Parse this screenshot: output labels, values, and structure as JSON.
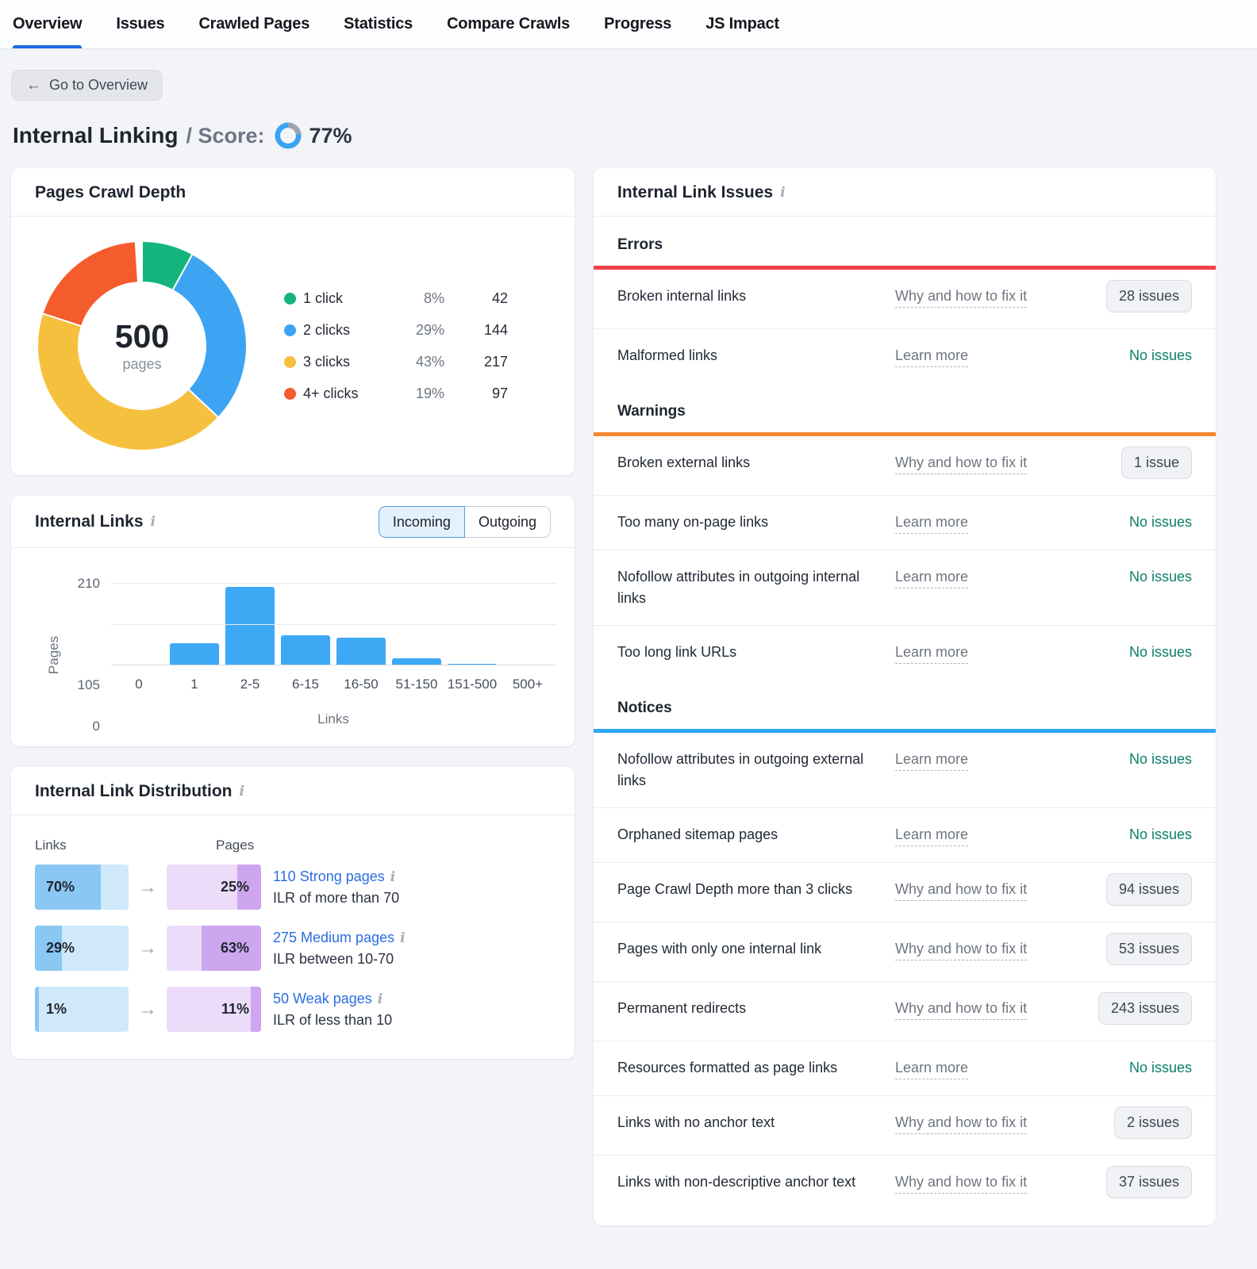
{
  "icons": {
    "info": "i",
    "back_arrow": "←",
    "arrow_right": "→"
  },
  "nav": {
    "tabs": [
      {
        "label": "Overview",
        "active": true
      },
      {
        "label": "Issues",
        "active": false
      },
      {
        "label": "Crawled Pages",
        "active": false
      },
      {
        "label": "Statistics",
        "active": false
      },
      {
        "label": "Compare Crawls",
        "active": false
      },
      {
        "label": "Progress",
        "active": false
      },
      {
        "label": "JS Impact",
        "active": false
      }
    ]
  },
  "back_button": {
    "label": "Go to Overview"
  },
  "page": {
    "title": "Internal Linking",
    "score_prefix": "/ Score:",
    "score_value": "77%",
    "score_percent": 77,
    "score_ring_color": "#3ba3f2",
    "score_ring_track": "#9aa3ae"
  },
  "crawl_depth_card": {
    "title": "Pages Crawl Depth",
    "center_value": "500",
    "center_label": "pages",
    "legend": [
      {
        "label": "1 click",
        "percent": "8%",
        "count": "42",
        "color": "#15b47c"
      },
      {
        "label": "2 clicks",
        "percent": "29%",
        "count": "144",
        "color": "#3da4f4"
      },
      {
        "label": "3 clicks",
        "percent": "43%",
        "count": "217",
        "color": "#f5c03d"
      },
      {
        "label": "4+ clicks",
        "percent": "19%",
        "count": "97",
        "color": "#f45b2d"
      }
    ]
  },
  "internal_links_card": {
    "title": "Internal Links",
    "toggle": {
      "incoming": "Incoming",
      "outgoing": "Outgoing",
      "selected": "Incoming"
    },
    "ylabel": "Pages",
    "xlabel": "Links",
    "yticks": {
      "top": "210",
      "middle": "105",
      "bottom": "0"
    }
  },
  "distribution_card": {
    "title": "Internal Link Distribution",
    "links_header": "Links",
    "pages_header": "Pages",
    "rows": [
      {
        "links_percent": "70%",
        "links_fill": 70,
        "pages_percent": "25%",
        "pages_fill": 25,
        "link_label": "110 Strong pages",
        "subtitle": "ILR of more than 70"
      },
      {
        "links_percent": "29%",
        "links_fill": 29,
        "pages_percent": "63%",
        "pages_fill": 63,
        "link_label": "275 Medium pages",
        "subtitle": "ILR between 10-70"
      },
      {
        "links_percent": "1%",
        "links_fill": 1,
        "pages_percent": "11%",
        "pages_fill": 11,
        "link_label": "50 Weak pages",
        "subtitle": "ILR of less than 10"
      }
    ]
  },
  "issues_card": {
    "title": "Internal Link Issues",
    "sections": [
      {
        "name": "Errors",
        "accent_color": "#f2414b",
        "rows": [
          {
            "name": "Broken internal links",
            "link": "Why and how to fix it",
            "value": "28 issues",
            "value_type": "button"
          },
          {
            "name": "Malformed links",
            "link": "Learn more",
            "value": "No issues",
            "value_type": "text"
          }
        ]
      },
      {
        "name": "Warnings",
        "accent_color": "#f5882f",
        "rows": [
          {
            "name": "Broken external links",
            "link": "Why and how to fix it",
            "value": "1 issue",
            "value_type": "button"
          },
          {
            "name": "Too many on-page links",
            "link": "Learn more",
            "value": "No issues",
            "value_type": "text"
          },
          {
            "name": "Nofollow attributes in outgoing internal links",
            "link": "Learn more",
            "value": "No issues",
            "value_type": "text"
          },
          {
            "name": "Too long link URLs",
            "link": "Learn more",
            "value": "No issues",
            "value_type": "text"
          }
        ]
      },
      {
        "name": "Notices",
        "accent_color": "#2fa7f3",
        "rows": [
          {
            "name": "Nofollow attributes in outgoing external links",
            "link": "Learn more",
            "value": "No issues",
            "value_type": "text"
          },
          {
            "name": "Orphaned sitemap pages",
            "link": "Learn more",
            "value": "No issues",
            "value_type": "text"
          },
          {
            "name": "Page Crawl Depth more than 3 clicks",
            "link": "Why and how to fix it",
            "value": "94 issues",
            "value_type": "button"
          },
          {
            "name": "Pages with only one internal link",
            "link": "Why and how to fix it",
            "value": "53 issues",
            "value_type": "button"
          },
          {
            "name": "Permanent redirects",
            "link": "Why and how to fix it",
            "value": "243 issues",
            "value_type": "button"
          },
          {
            "name": "Resources formatted as page links",
            "link": "Learn more",
            "value": "No issues",
            "value_type": "text"
          },
          {
            "name": "Links with no anchor text",
            "link": "Why and how to fix it",
            "value": "2 issues",
            "value_type": "button"
          },
          {
            "name": "Links with non-descriptive anchor text",
            "link": "Why and how to fix it",
            "value": "37 issues",
            "value_type": "button"
          }
        ]
      }
    ]
  },
  "chart_data": [
    {
      "type": "pie",
      "title": "Pages Crawl Depth",
      "labels": [
        "1 click",
        "2 clicks",
        "3 clicks",
        "4+ clicks"
      ],
      "values": [
        42,
        144,
        217,
        97
      ],
      "percents": [
        8,
        29,
        43,
        19
      ],
      "colors": [
        "#15b47c",
        "#3da4f4",
        "#f5c03d",
        "#f45b2d"
      ],
      "center_total": 500,
      "center_unit": "pages",
      "donut": true,
      "legend_position": "right"
    },
    {
      "type": "bar",
      "title": "Internal Links — Incoming",
      "categories": [
        "0",
        "1",
        "2-5",
        "6-15",
        "16-50",
        "51-150",
        "151-500",
        "500+"
      ],
      "values": [
        0,
        56,
        200,
        76,
        71,
        19,
        5,
        0
      ],
      "xlabel": "Links",
      "ylabel": "Pages",
      "ylim": [
        0,
        210
      ],
      "yticks": [
        0,
        105,
        210
      ],
      "bar_color": "#3da9f5",
      "grid": true,
      "legend_position": "none"
    }
  ]
}
